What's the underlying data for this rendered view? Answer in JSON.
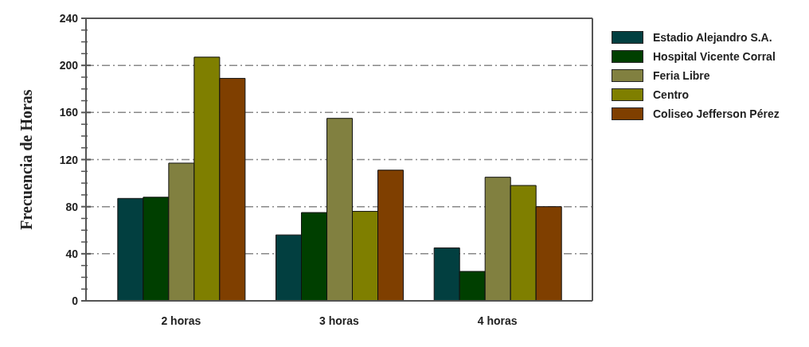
{
  "chart_data": {
    "type": "bar",
    "ylabel": "Frecuencia de Horas",
    "categories": [
      "2 horas",
      "3 horas",
      "4 horas"
    ],
    "series": [
      {
        "name": "Estadio Alejandro S.A.",
        "color": "#023f40",
        "values": [
          87,
          56,
          45
        ]
      },
      {
        "name": "Hospital Vicente Corral",
        "color": "#003f00",
        "values": [
          88,
          75,
          25
        ]
      },
      {
        "name": "Feria Libre",
        "color": "#818040",
        "values": [
          117,
          155,
          105
        ]
      },
      {
        "name": "Centro",
        "color": "#7f7f00",
        "values": [
          207,
          76,
          98
        ]
      },
      {
        "name": "Coliseo Jefferson Pérez",
        "color": "#7f3f00",
        "values": [
          189,
          111,
          80
        ]
      }
    ],
    "ylim": [
      0,
      240
    ],
    "yticks": [
      0,
      {
        "value": 10,
        "label": null
      },
      {
        "value": 20,
        "label": null
      },
      {
        "value": 30,
        "label": null
      },
      40,
      {
        "value": 50,
        "label": null
      },
      {
        "value": 60,
        "label": null
      },
      {
        "value": 70,
        "label": null
      },
      80,
      {
        "value": 90,
        "label": null
      },
      {
        "value": 100,
        "label": null
      },
      {
        "value": 110,
        "label": null
      },
      120,
      {
        "value": 130,
        "label": null
      },
      {
        "value": 140,
        "label": null
      },
      {
        "value": 150,
        "label": null
      },
      160,
      {
        "value": 170,
        "label": null
      },
      {
        "value": 180,
        "label": null
      },
      {
        "value": 190,
        "label": null
      },
      200,
      {
        "value": 210,
        "label": null
      },
      {
        "value": 220,
        "label": null
      },
      {
        "value": 230,
        "label": null
      },
      240
    ],
    "grid": "y",
    "legend": "top right"
  }
}
